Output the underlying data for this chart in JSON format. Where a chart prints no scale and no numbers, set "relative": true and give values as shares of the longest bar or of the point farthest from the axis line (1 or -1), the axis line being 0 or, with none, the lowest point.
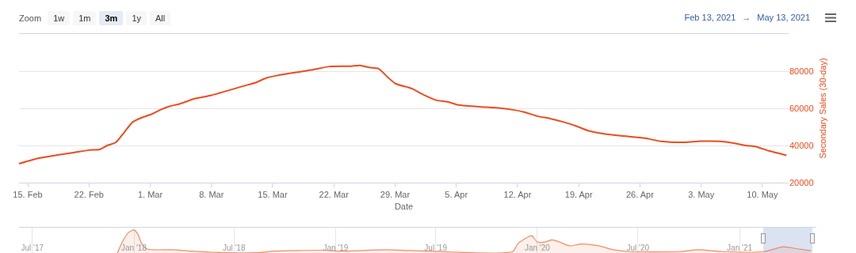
{
  "chart_data": [
    {
      "type": "line",
      "xlabel": "Date",
      "y2label": "Secondary Sales (30-day)",
      "grid": "y",
      "annotations": [
        "Zoom",
        "1w",
        "1m",
        "3m",
        "1y",
        "All",
        "Feb 13, 2021",
        "→",
        "May 13, 2021"
      ],
      "xlim": [
        "2021-02-14",
        "2021-05-13"
      ],
      "xticks": [
        {
          "value": "2021-02-15",
          "label": "15. Feb"
        },
        {
          "value": "2021-02-22",
          "label": "22. Feb"
        },
        {
          "value": "2021-03-01",
          "label": "1. Mar"
        },
        {
          "value": "2021-03-08",
          "label": "8. Mar"
        },
        {
          "value": "2021-03-15",
          "label": "15. Mar"
        },
        {
          "value": "2021-03-22",
          "label": "22. Mar"
        },
        {
          "value": "2021-03-29",
          "label": "29. Mar"
        },
        {
          "value": "2021-04-05",
          "label": "5. Apr"
        },
        {
          "value": "2021-04-12",
          "label": "12. Apr"
        },
        {
          "value": "2021-04-19",
          "label": "19. Apr"
        },
        {
          "value": "2021-04-26",
          "label": "26. Apr"
        },
        {
          "value": "2021-05-03",
          "label": "3. May"
        },
        {
          "value": "2021-05-10",
          "label": "10. May"
        }
      ],
      "y2lim": [
        20000,
        100000
      ],
      "y2ticks": [
        20000,
        40000,
        60000,
        80000,
        {
          "value": 100000,
          "label": null
        }
      ],
      "series": [
        {
          "color": "#ee4b1c",
          "axis": "y2",
          "x": [
            "2021-02-14",
            "2021-02-16T07:00",
            "2021-02-18T10:00",
            "2021-02-20T06:00",
            "2021-02-22",
            "2021-02-23T06:00",
            "2021-02-24T02:00",
            "2021-02-25T02:00",
            "2021-02-26",
            "2021-02-27",
            "2021-02-28T01:00",
            "2021-03-01T02:00",
            "2021-03-02T04:00",
            "2021-03-03T05:00",
            "2021-03-04T06:00",
            "2021-03-06T02:00",
            "2021-03-07T22:00",
            "2021-03-12T03:00",
            "2021-03-13",
            "2021-03-14T06:00",
            "2021-03-15T11:00",
            "2021-03-16T23:00",
            "2021-03-19T10:00",
            "2021-03-21T12:00",
            "2021-03-23T23:00",
            "2021-03-25",
            "2021-03-26T01:00",
            "2021-03-27T02:00",
            "2021-03-28T04:00",
            "2021-03-29T01:00",
            "2021-03-30T21:00",
            "2021-04-01T06:00",
            "2021-04-02T18:00",
            "2021-04-04",
            "2021-04-05T05:00",
            "2021-04-07T14:00",
            "2021-04-10",
            "2021-04-11T12:00",
            "2021-04-12T18:00",
            "2021-04-14T06:00",
            "2021-04-15T17:00",
            "2021-04-17T07:00",
            "2021-04-18T19:00",
            "2021-04-20",
            "2021-04-21T18:00",
            "2021-04-23T21:00",
            "2021-04-26T14:00",
            "2021-04-28T10:00",
            "2021-05-01T02:00",
            "2021-05-02T23:00",
            "2021-05-05T02:00",
            "2021-05-06T17:00",
            "2021-05-08T01:00",
            "2021-05-09T06:00",
            "2021-05-10T18:00",
            "2021-05-12T18:00"
          ],
          "values": [
            30200,
            33200,
            34900,
            36200,
            37500,
            37900,
            40000,
            41700,
            46900,
            52600,
            55000,
            56700,
            59200,
            61100,
            62200,
            65200,
            66900,
            72600,
            73700,
            76300,
            77600,
            78800,
            80600,
            82500,
            82700,
            83100,
            82000,
            81400,
            76700,
            73300,
            70700,
            67300,
            64300,
            63500,
            61800,
            60900,
            60100,
            59200,
            58000,
            55800,
            54500,
            52600,
            50300,
            48100,
            46400,
            45200,
            43900,
            42200,
            41700,
            42300,
            42200,
            41300,
            40000,
            39400,
            37100,
            34700
          ]
        }
      ]
    },
    {
      "type": "area",
      "relative": true,
      "grid": "x",
      "tick_labels": "x",
      "xlim": [
        "2017-06-07",
        "2021-05-20"
      ],
      "xticks": [
        {
          "value": "2017-07-01",
          "label": "Jul '17"
        },
        {
          "value": "2018-01-01",
          "label": "Jan '18"
        },
        {
          "value": "2018-07-01",
          "label": "Jul '18"
        },
        {
          "value": "2019-01-01",
          "label": "Jan '19"
        },
        {
          "value": "2019-07-01",
          "label": "Jul '19"
        },
        {
          "value": "2020-01-01",
          "label": "Jan '20"
        },
        {
          "value": "2020-07-01",
          "label": "Jul '20"
        },
        {
          "value": "2021-01-01",
          "label": "Jan '21"
        }
      ],
      "bands": [
        {
          "axis": "x",
          "from": "2021-02-13",
          "to": "2021-05-13",
          "color": "#ccd6eb"
        }
      ],
      "series": [
        {
          "color": "#f08a64",
          "x": [
            "2017-12-02",
            "2017-12-12",
            "2017-12-22",
            "2018-01-01",
            "2018-01-08",
            "2018-01-15",
            "2018-01-25",
            "2018-03-11",
            "2018-04-14",
            "2018-06-03",
            "2018-08-17",
            "2018-09-10",
            "2018-12-08",
            "2019-01-11",
            "2019-03-31",
            "2019-06-17",
            "2019-11-17",
            "2019-11-27",
            "2019-12-17",
            "2019-12-22",
            "2020-01-01",
            "2020-01-15",
            "2020-01-28",
            "2020-02-10",
            "2020-02-29",
            "2020-03-20",
            "2020-04-19",
            "2020-05-18",
            "2020-06-17",
            "2020-09-14",
            "2020-10-18",
            "2020-12-02",
            "2021-02-14",
            "2021-03-21",
            "2021-04-16",
            "2021-05-10"
          ],
          "values": [
            0,
            0.53,
            0.89,
            1,
            0.82,
            0.41,
            0.17,
            0.14,
            0.08,
            0.02,
            0.02,
            0.08,
            0.12,
            0.08,
            0.14,
            0.08,
            0.06,
            0.41,
            0.72,
            0.75,
            0.48,
            0.48,
            0.57,
            0.48,
            0.31,
            0.39,
            0.32,
            0.14,
            0.06,
            0.06,
            0.14,
            0.06,
            0.06,
            0.27,
            0.18,
            0.1
          ]
        }
      ]
    }
  ]
}
